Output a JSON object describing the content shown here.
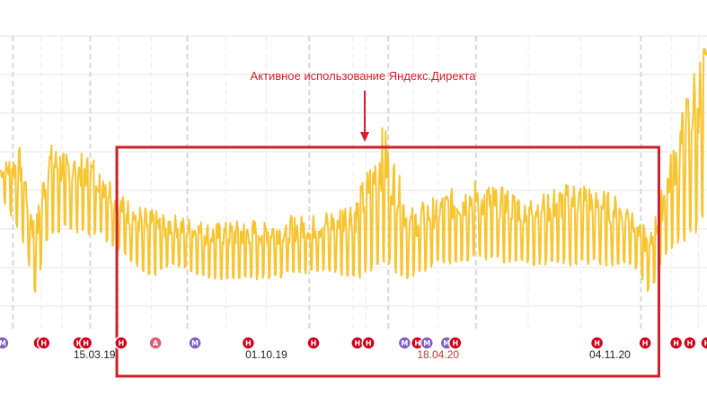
{
  "chart_data": {
    "type": "line",
    "title": "",
    "xlabel": "",
    "ylabel": "",
    "y_axis_labels_visible": false,
    "grid": true,
    "line_color": "#f7c531",
    "x_tick_labels": [
      {
        "label": "15.03.19",
        "date": "2019-03-15",
        "highlight": false
      },
      {
        "label": "01.10.19",
        "date": "2019-10-01",
        "highlight": false
      },
      {
        "label": "18.04.20",
        "date": "2020-04-18",
        "highlight": true
      },
      {
        "label": "04.11.20",
        "date": "2020-11-04",
        "highlight": false
      }
    ],
    "x_range": [
      "2018-11-25",
      "2021-02-25"
    ],
    "series_envelope": {
      "note_free": true,
      "points": [
        {
          "date": "2018-11-25",
          "low": 45,
          "high": 55
        },
        {
          "date": "2018-12-20",
          "low": 30,
          "high": 62
        },
        {
          "date": "2019-01-05",
          "low": 10,
          "high": 35
        },
        {
          "date": "2019-01-20",
          "low": 30,
          "high": 63
        },
        {
          "date": "2019-02-15",
          "low": 32,
          "high": 60
        },
        {
          "date": "2019-03-20",
          "low": 30,
          "high": 58
        },
        {
          "date": "2019-04-15",
          "low": 25,
          "high": 45
        },
        {
          "date": "2019-05-15",
          "low": 15,
          "high": 40
        },
        {
          "date": "2019-06-15",
          "low": 20,
          "high": 38
        },
        {
          "date": "2019-08-01",
          "low": 15,
          "high": 35
        },
        {
          "date": "2019-10-01",
          "low": 15,
          "high": 37
        },
        {
          "date": "2019-12-01",
          "low": 18,
          "high": 38
        },
        {
          "date": "2020-01-15",
          "low": 15,
          "high": 45
        },
        {
          "date": "2020-02-15",
          "low": 20,
          "high": 70
        },
        {
          "date": "2020-03-15",
          "low": 15,
          "high": 40
        },
        {
          "date": "2020-04-18",
          "low": 20,
          "high": 45
        },
        {
          "date": "2020-06-01",
          "low": 22,
          "high": 50
        },
        {
          "date": "2020-08-01",
          "low": 20,
          "high": 45
        },
        {
          "date": "2020-10-01",
          "low": 20,
          "high": 50
        },
        {
          "date": "2020-12-01",
          "low": 20,
          "high": 42
        },
        {
          "date": "2020-12-20",
          "low": 10,
          "high": 30
        },
        {
          "date": "2021-01-10",
          "low": 25,
          "high": 55
        },
        {
          "date": "2021-02-10",
          "low": 30,
          "high": 90
        },
        {
          "date": "2021-02-25",
          "low": 35,
          "high": 100
        }
      ]
    },
    "ylim": [
      0,
      100
    ],
    "annotation": {
      "text": "Активное использование Яндекс.Директа",
      "color": "#d0202a",
      "box_start": "2019-04-10",
      "box_end": "2020-12-31"
    },
    "event_markers": [
      {
        "letter": "М",
        "date": "2018-11-28",
        "color": "#7e60c4"
      },
      {
        "letter": "Н",
        "date": "2019-01-10",
        "color": "#d0021b"
      },
      {
        "letter": "Н",
        "date": "2019-01-15",
        "color": "#d0021b"
      },
      {
        "letter": "Н",
        "date": "2019-02-25",
        "color": "#d0021b"
      },
      {
        "letter": "Н",
        "date": "2019-03-05",
        "color": "#d0021b"
      },
      {
        "letter": "Н",
        "date": "2019-04-15",
        "color": "#d0021b"
      },
      {
        "letter": "А",
        "date": "2019-05-25",
        "color": "#e05a7a"
      },
      {
        "letter": "М",
        "date": "2019-07-10",
        "color": "#7e60c4"
      },
      {
        "letter": "Н",
        "date": "2019-09-10",
        "color": "#d0021b"
      },
      {
        "letter": "Н",
        "date": "2019-11-25",
        "color": "#d0021b"
      },
      {
        "letter": "Н",
        "date": "2020-01-15",
        "color": "#d0021b"
      },
      {
        "letter": "Н",
        "date": "2020-01-28",
        "color": "#d0021b"
      },
      {
        "letter": "М",
        "date": "2020-03-10",
        "color": "#7e60c4"
      },
      {
        "letter": "Н",
        "date": "2020-03-25",
        "color": "#d0021b"
      },
      {
        "letter": "М",
        "date": "2020-04-05",
        "color": "#7e60c4"
      },
      {
        "letter": "М",
        "date": "2020-04-28",
        "color": "#7e60c4"
      },
      {
        "letter": "Н",
        "date": "2020-05-08",
        "color": "#d0021b"
      },
      {
        "letter": "Н",
        "date": "2020-10-20",
        "color": "#d0021b"
      },
      {
        "letter": "Н",
        "date": "2020-12-15",
        "color": "#d0021b"
      },
      {
        "letter": "Н",
        "date": "2021-01-20",
        "color": "#d0021b"
      },
      {
        "letter": "Н",
        "date": "2021-02-05",
        "color": "#d0021b"
      },
      {
        "letter": "Н",
        "date": "2021-02-25",
        "color": "#d0021b"
      }
    ]
  }
}
